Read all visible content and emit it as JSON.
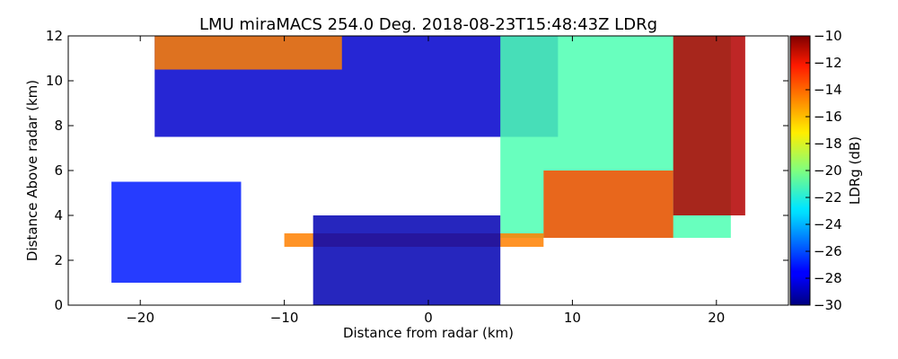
{
  "chart_data": {
    "type": "heatmap",
    "title": "LMU miraMACS 254.0 Deg. 2018-08-23T15:48:43Z  LDRg",
    "xlabel": "Distance from radar (km)",
    "ylabel": "Distance Above radar  (km)",
    "xlim": [
      -25,
      25
    ],
    "ylim": [
      0,
      12
    ],
    "x_ticks": [
      "−20",
      "−10",
      "0",
      "10",
      "20"
    ],
    "y_ticks": [
      "0",
      "2",
      "4",
      "6",
      "8",
      "10",
      "12"
    ],
    "colorbar": {
      "label": "LDRg (dB)",
      "range": [
        -30,
        -10
      ],
      "ticks": [
        "−10",
        "−12",
        "−14",
        "−16",
        "−18",
        "−20",
        "−22",
        "−24",
        "−26",
        "−28",
        "−30"
      ],
      "colormap": "jet"
    },
    "regions": [
      {
        "desc": "upper cloud",
        "x": [
          -19,
          9
        ],
        "y": [
          7.5,
          12
        ],
        "ldr_db": -28.5
      },
      {
        "desc": "upper cloud top edge",
        "x": [
          -19,
          -6
        ],
        "y": [
          10.5,
          12
        ],
        "ldr_db": -15
      },
      {
        "desc": "right anvil cloud",
        "x": [
          5,
          21
        ],
        "y": [
          3,
          12
        ],
        "ldr_db": -21
      },
      {
        "desc": "right hot spots",
        "x": [
          8,
          17
        ],
        "y": [
          3,
          6
        ],
        "ldr_db": -14
      },
      {
        "desc": "cloud edge right",
        "x": [
          17,
          22
        ],
        "y": [
          4,
          12
        ],
        "ldr_db": -11
      },
      {
        "desc": "left low cloud",
        "x": [
          -22,
          -13
        ],
        "y": [
          1,
          5.5
        ],
        "ldr_db": -27
      },
      {
        "desc": "melting layer",
        "x": [
          -10,
          8
        ],
        "y": [
          2.6,
          3.2
        ],
        "ldr_db": -15
      },
      {
        "desc": "near-radar echoes",
        "x": [
          -8,
          5
        ],
        "y": [
          0,
          4
        ],
        "ldr_db": -29
      }
    ]
  }
}
